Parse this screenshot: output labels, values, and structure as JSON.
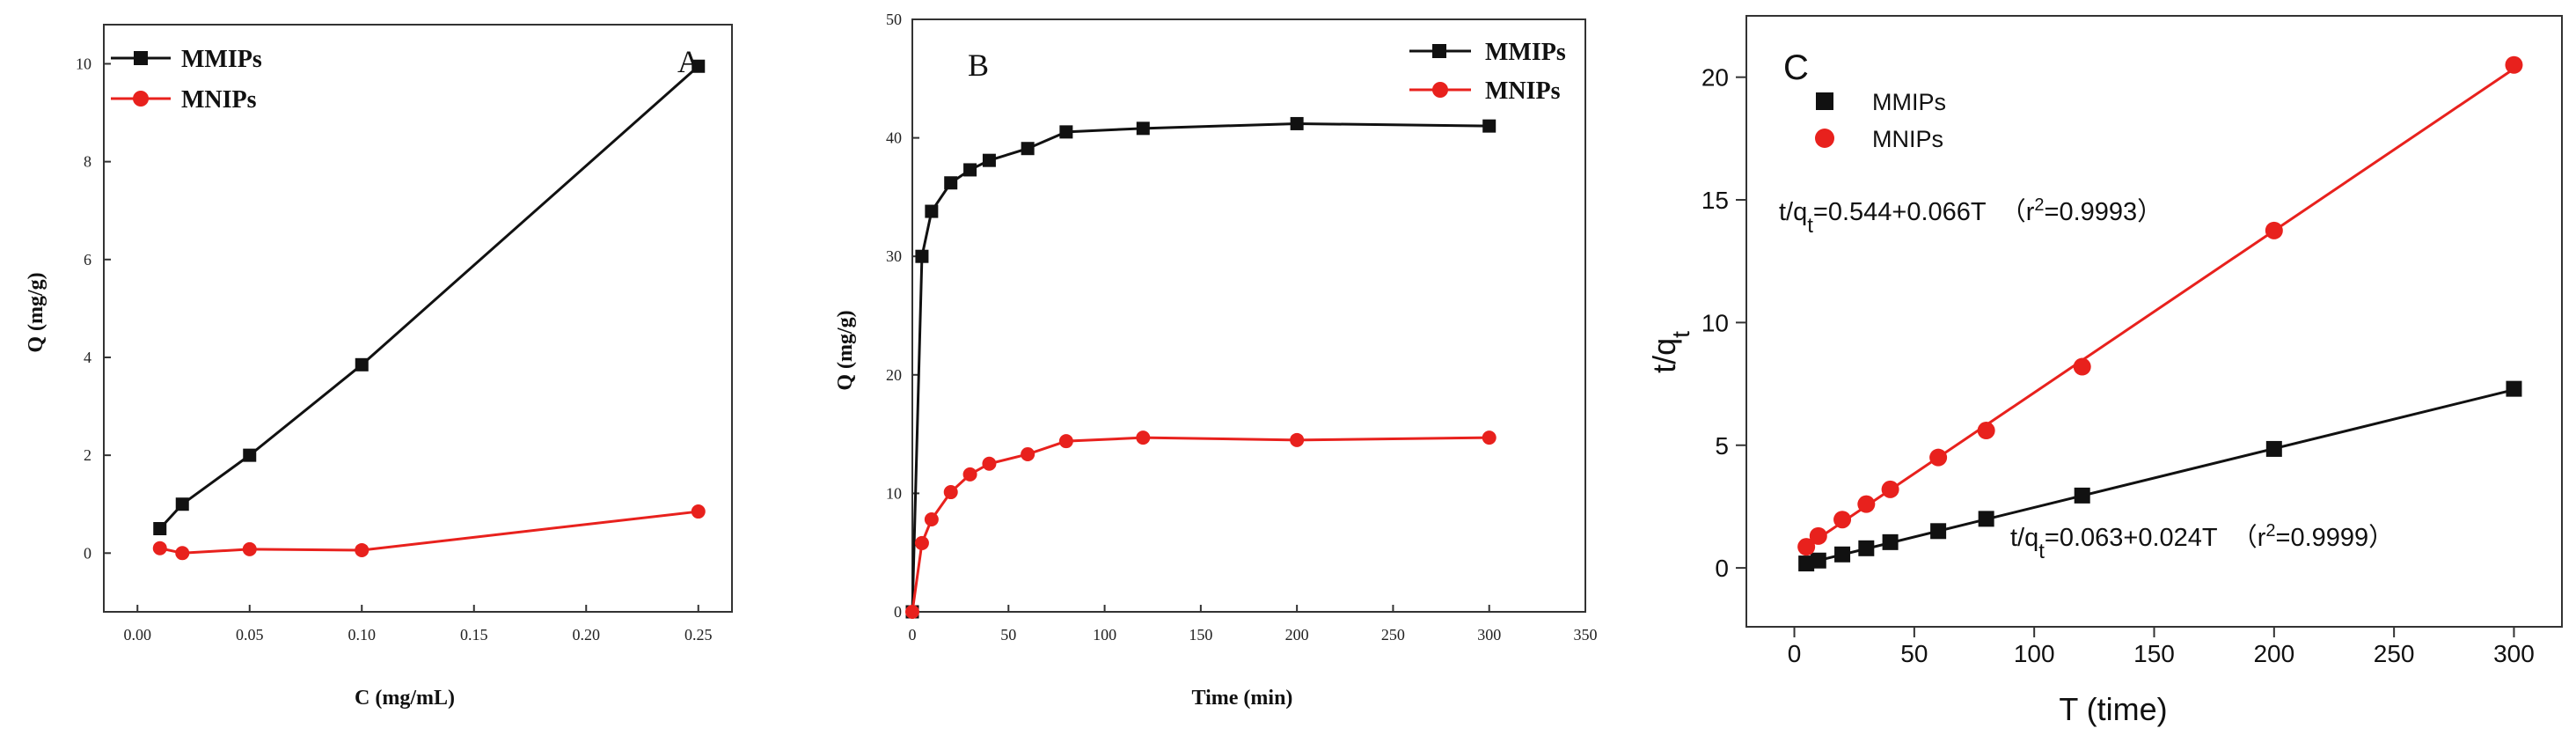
{
  "chart_data": [
    {
      "panel": "A",
      "type": "line",
      "xlabel": "C (mg/mL)",
      "ylabel": "Q (mg/g)",
      "xlim": [
        -0.015,
        0.265
      ],
      "ylim": [
        -1.2,
        10.8
      ],
      "xticks": [
        0.0,
        0.05,
        0.1,
        0.15,
        0.2,
        0.25
      ],
      "xtick_labels": [
        "0.00",
        "0.05",
        "0.10",
        "0.15",
        "0.20",
        "0.25"
      ],
      "yticks": [
        0,
        2,
        4,
        6,
        8,
        10
      ],
      "ytick_labels": [
        "0",
        "2",
        "4",
        "6",
        "8",
        "10"
      ],
      "legend_position": "top-left",
      "series": [
        {
          "name": "MMIPs",
          "color": "#111111",
          "marker": "square",
          "x": [
            0.01,
            0.02,
            0.05,
            0.1,
            0.25
          ],
          "y": [
            0.5,
            1.0,
            2.0,
            3.85,
            9.95
          ]
        },
        {
          "name": "MNIPs",
          "color": "#e8211d",
          "marker": "circle",
          "x": [
            0.01,
            0.02,
            0.05,
            0.1,
            0.25
          ],
          "y": [
            0.1,
            0.0,
            0.08,
            0.06,
            0.85
          ]
        }
      ]
    },
    {
      "panel": "B",
      "type": "line",
      "xlabel": "Time (min)",
      "ylabel": "Q (mg/g)",
      "xlim": [
        0,
        350
      ],
      "ylim": [
        0,
        50
      ],
      "xticks": [
        0,
        50,
        100,
        150,
        200,
        250,
        300,
        350
      ],
      "xtick_labels": [
        "0",
        "50",
        "100",
        "150",
        "200",
        "250",
        "300",
        "350"
      ],
      "yticks": [
        0,
        10,
        20,
        30,
        40,
        50
      ],
      "ytick_labels": [
        "0",
        "10",
        "20",
        "30",
        "40",
        "50"
      ],
      "legend_position": "top-right",
      "series": [
        {
          "name": "MMIPs",
          "color": "#111111",
          "marker": "square",
          "x": [
            0,
            5,
            10,
            20,
            30,
            40,
            60,
            80,
            120,
            200,
            300
          ],
          "y": [
            0,
            30,
            33.8,
            36.2,
            37.3,
            38.1,
            39.1,
            40.5,
            40.8,
            41.2,
            41.0
          ]
        },
        {
          "name": "MNIPs",
          "color": "#e8211d",
          "marker": "circle",
          "x": [
            0,
            5,
            10,
            20,
            30,
            40,
            60,
            80,
            120,
            200,
            300
          ],
          "y": [
            0,
            5.8,
            7.8,
            10.1,
            11.6,
            12.5,
            13.3,
            14.4,
            14.7,
            14.5,
            14.7
          ]
        }
      ]
    },
    {
      "panel": "C",
      "type": "scatter",
      "xlabel": "T (time)",
      "ylabel": "t/qt",
      "ylabel_main": "t/q",
      "ylabel_sub": "t",
      "xlim": [
        -20,
        320
      ],
      "ylim": [
        -2.4,
        22.5
      ],
      "xticks": [
        0,
        50,
        100,
        150,
        200,
        250,
        300
      ],
      "xtick_labels": [
        "0",
        "50",
        "100",
        "150",
        "200",
        "250",
        "300"
      ],
      "yticks": [
        0,
        5,
        10,
        15,
        20
      ],
      "ytick_labels": [
        "0",
        "5",
        "10",
        "15",
        "20"
      ],
      "legend_position": "top-left",
      "series": [
        {
          "name": "MMIPs",
          "color": "#111111",
          "marker": "square",
          "x": [
            5,
            10,
            20,
            30,
            40,
            60,
            80,
            120,
            200,
            300
          ],
          "y": [
            0.18,
            0.3,
            0.55,
            0.8,
            1.05,
            1.5,
            2.0,
            2.95,
            4.85,
            7.3
          ],
          "fit": {
            "intercept": 0.063,
            "slope": 0.024
          }
        },
        {
          "name": "MNIPs",
          "color": "#e8211d",
          "marker": "circle",
          "x": [
            5,
            10,
            20,
            30,
            40,
            60,
            80,
            120,
            200,
            300
          ],
          "y": [
            0.86,
            1.3,
            1.97,
            2.6,
            3.2,
            4.5,
            5.6,
            8.2,
            13.75,
            20.5
          ],
          "fit": {
            "intercept": 0.544,
            "slope": 0.066
          }
        }
      ],
      "annotations": [
        {
          "id": "eq_mnips",
          "prefix": "t/q",
          "sub": "t",
          "body": "=0.544+0.066T  （r",
          "sup": "2",
          "tail": "=0.9993）"
        },
        {
          "id": "eq_mmips",
          "prefix": "t/q",
          "sub": "t",
          "body": "=0.063+0.024T  （r",
          "sup": "2",
          "tail": "=0.9999）"
        }
      ]
    }
  ]
}
